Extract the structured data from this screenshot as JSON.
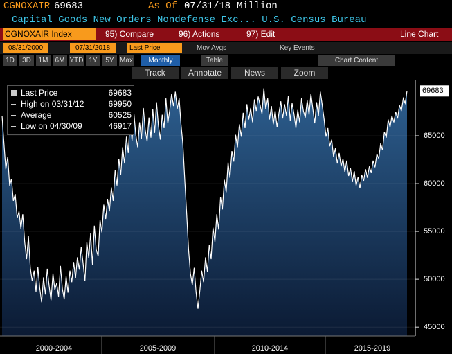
{
  "header": {
    "ticker": "CGNOXAIR",
    "value": 69683,
    "as_of_label": "As Of",
    "as_of_date": "07/31/18",
    "unit": "Million",
    "description": "Capital Goods New Orders Nondefense Exc... U.S. Census Bureau"
  },
  "toolbar": {
    "security": "CGNOXAIR Index",
    "menus": [
      "95) Compare",
      "96) Actions",
      "97) Edit"
    ],
    "chart_type": "Line Chart",
    "start_date": "08/31/2000",
    "end_date": "07/31/2018",
    "field": "Last Price",
    "options": [
      "Mov Avgs",
      "Key Events"
    ],
    "ranges": [
      "1D",
      "3D",
      "1M",
      "6M",
      "YTD",
      "1Y",
      "5Y",
      "Max"
    ],
    "period": "Monthly",
    "view": "Table",
    "chart_content": "Chart Content",
    "tools": [
      "Track",
      "Annotate",
      "News",
      "Zoom"
    ]
  },
  "legend": [
    {
      "label": "Last Price",
      "value": 69683
    },
    {
      "label": "High on 03/31/12",
      "value": 69950
    },
    {
      "label": "Average",
      "value": 60525
    },
    {
      "label": "Low on 04/30/09",
      "value": 46917
    }
  ],
  "chart_data": {
    "type": "line",
    "color": "#ffffff",
    "values": [
      67100,
      64200,
      61500,
      62800,
      59800,
      60500,
      58200,
      58900,
      56400,
      57100,
      55300,
      56800,
      53900,
      52100,
      54500,
      51200,
      49800,
      50900,
      48700,
      51300,
      49100,
      47600,
      50200,
      48400,
      51100,
      49300,
      47800,
      50600,
      48900,
      49600,
      48200,
      51400,
      49000,
      47900,
      50300,
      48600,
      50900,
      49700,
      51800,
      50100,
      52300,
      51000,
      53400,
      51700,
      49800,
      53900,
      52200,
      54800,
      51500,
      55600,
      53100,
      52400,
      56200,
      54900,
      57800,
      56300,
      58400,
      57100,
      59600,
      58200,
      61400,
      59800,
      62600,
      60900,
      63800,
      62100,
      64900,
      63200,
      66800,
      64500,
      67300,
      65100,
      63800,
      66400,
      64700,
      67900,
      65600,
      64400,
      66900,
      64800,
      67800,
      65300,
      68500,
      66100,
      64600,
      67200,
      65800,
      68900,
      66300,
      67700,
      69400,
      68100,
      69600,
      67800,
      68900,
      66200,
      64100,
      60400,
      56800,
      53100,
      50600,
      49400,
      51200,
      48600,
      46917,
      48800,
      50900,
      49700,
      52300,
      50800,
      53600,
      52100,
      55400,
      53900,
      56800,
      55200,
      58600,
      57300,
      60400,
      59100,
      62200,
      60600,
      63400,
      62300,
      65100,
      63800,
      66200,
      64900,
      67400,
      65800,
      68300,
      66700,
      67900,
      66400,
      68800,
      67600,
      69100,
      68200,
      67300,
      69950,
      67800,
      68900,
      66700,
      68100,
      66200,
      67600,
      65900,
      67400,
      68600,
      66800,
      68300,
      67100,
      69200,
      66600,
      68400,
      67300,
      65800,
      67700,
      66400,
      68900,
      67600,
      66900,
      68700,
      67200,
      69400,
      67800,
      66300,
      68500,
      67100,
      69600,
      68200,
      66700,
      64900,
      65800,
      63900,
      64600,
      62800,
      63700,
      62100,
      63200,
      61800,
      62600,
      61200,
      62400,
      60800,
      61600,
      60200,
      61300,
      59800,
      60700,
      59500,
      60900,
      60300,
      61500,
      60600,
      61800,
      61100,
      62400,
      61700,
      63100,
      62600,
      64200,
      63500,
      65400,
      64800,
      66700,
      65900,
      67100,
      66400,
      67500,
      66800,
      68200,
      67600,
      68900,
      68400,
      69683
    ],
    "ylim": [
      44000,
      70500
    ],
    "yticks": [
      45000,
      50000,
      55000,
      60000,
      65000
    ],
    "period_labels": [
      "2000-2004",
      "2005-2009",
      "2010-2014",
      "2015-2019"
    ]
  }
}
